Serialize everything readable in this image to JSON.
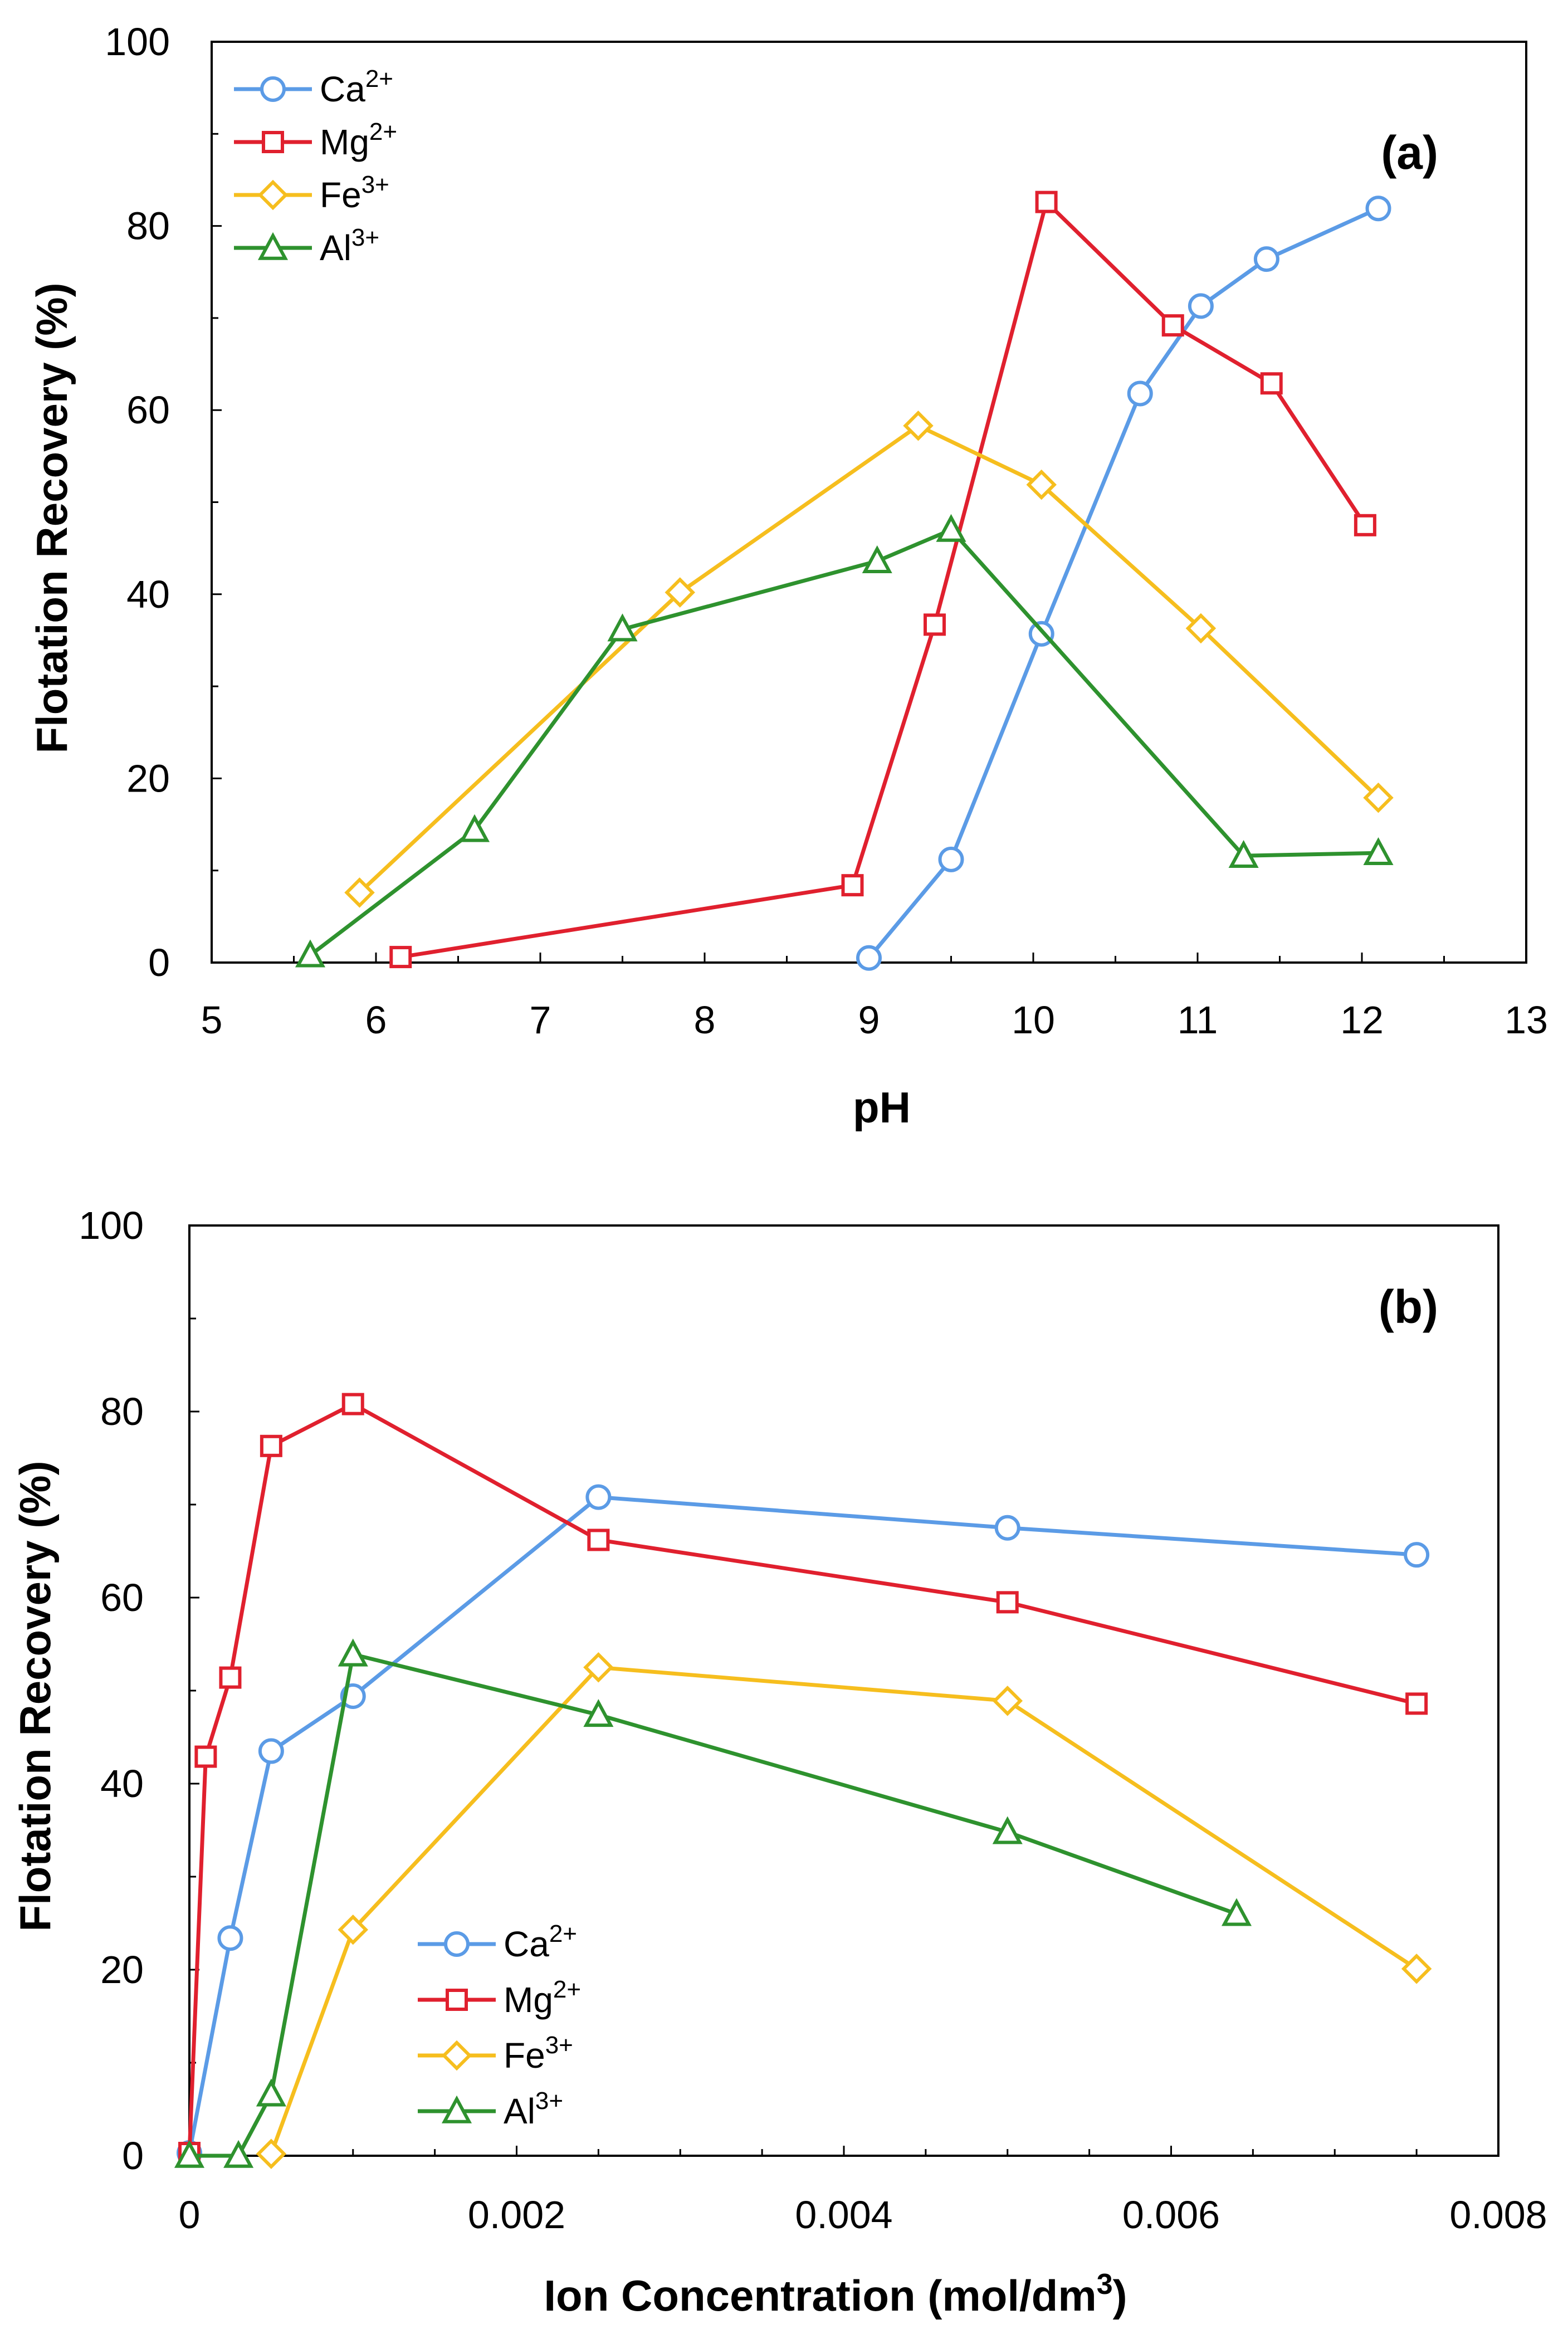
{
  "colors": {
    "Ca": "#5B9BE6",
    "Mg": "#E0202E",
    "Fe": "#F6BE1E",
    "Al": "#2E922E"
  },
  "chart_data": [
    {
      "type": "line",
      "panel_label": "(a)",
      "xlabel": "pH",
      "ylabel": "Flotation Recovery (%)",
      "xlim": [
        5,
        13
      ],
      "ylim": [
        0,
        100
      ],
      "xticks": [
        "5",
        "6",
        "7",
        "8",
        "9",
        "10",
        "11",
        "12",
        "13"
      ],
      "yticks": [
        "0",
        "20",
        "40",
        "60",
        "80",
        "100"
      ],
      "legend_position": "top-left",
      "series": [
        {
          "key": "Ca",
          "name": "Ca",
          "sup": "2+",
          "marker": "circle",
          "x": [
            9.0,
            9.5,
            10.05,
            10.65,
            11.02,
            11.42,
            12.1
          ],
          "y": [
            0.5,
            11.2,
            35.7,
            61.8,
            71.3,
            76.4,
            81.9
          ]
        },
        {
          "key": "Mg",
          "name": "Mg",
          "sup": "2+",
          "marker": "square",
          "x": [
            6.15,
            8.9,
            9.4,
            10.08,
            10.85,
            11.45,
            12.02
          ],
          "y": [
            0.6,
            8.4,
            36.7,
            82.6,
            69.2,
            62.9,
            47.5
          ]
        },
        {
          "key": "Fe",
          "name": "Fe",
          "sup": "3+",
          "marker": "diamond",
          "x": [
            5.9,
            7.85,
            9.3,
            10.05,
            11.02,
            12.1
          ],
          "y": [
            7.6,
            40.2,
            58.3,
            51.9,
            36.3,
            17.9
          ]
        },
        {
          "key": "Al",
          "name": "Al",
          "sup": "3+",
          "marker": "triangle",
          "x": [
            5.6,
            6.6,
            7.5,
            9.05,
            9.5,
            11.28,
            12.1
          ],
          "y": [
            0.8,
            14.4,
            36.2,
            43.6,
            47.0,
            11.6,
            11.9
          ]
        }
      ]
    },
    {
      "type": "line",
      "panel_label": "(b)",
      "xlabel": "Ion Concentration (mol/dm",
      "xlabel_sup": "3",
      "xlabel_end": ")",
      "ylabel": "Flotation Recovery (%)",
      "xlim": [
        0,
        0.008
      ],
      "ylim": [
        0,
        100
      ],
      "xticks": [
        "0",
        "0.002",
        "0.004",
        "0.006",
        "0.008"
      ],
      "yticks": [
        "0",
        "20",
        "40",
        "60",
        "80",
        "100"
      ],
      "legend_position": "bottom-center",
      "series": [
        {
          "key": "Ca",
          "name": "Ca",
          "sup": "2+",
          "marker": "circle",
          "x": [
            0,
            0.00025,
            0.0005,
            0.001,
            0.0025,
            0.005,
            0.0075
          ],
          "y": [
            0.3,
            23.4,
            43.5,
            49.4,
            70.8,
            67.5,
            64.6
          ]
        },
        {
          "key": "Mg",
          "name": "Mg",
          "sup": "2+",
          "marker": "square",
          "x": [
            0,
            0.0001,
            0.00025,
            0.0005,
            0.001,
            0.0025,
            0.005,
            0.0075
          ],
          "y": [
            0.3,
            42.9,
            51.4,
            76.3,
            80.8,
            66.2,
            59.5,
            48.6
          ]
        },
        {
          "key": "Fe",
          "name": "Fe",
          "sup": "3+",
          "marker": "diamond",
          "x": [
            0.0005,
            0.001,
            0.0025,
            0.005,
            0.0075
          ],
          "y": [
            0.2,
            24.3,
            52.5,
            48.9,
            20.1
          ]
        },
        {
          "key": "Al",
          "name": "Al",
          "sup": "3+",
          "marker": "triangle",
          "x": [
            0,
            0.0003,
            0.0005,
            0.001,
            0.0025,
            0.005,
            0.0064
          ],
          "y": [
            0,
            0,
            6.6,
            53.9,
            47.4,
            34.8,
            26.0
          ]
        }
      ]
    }
  ]
}
